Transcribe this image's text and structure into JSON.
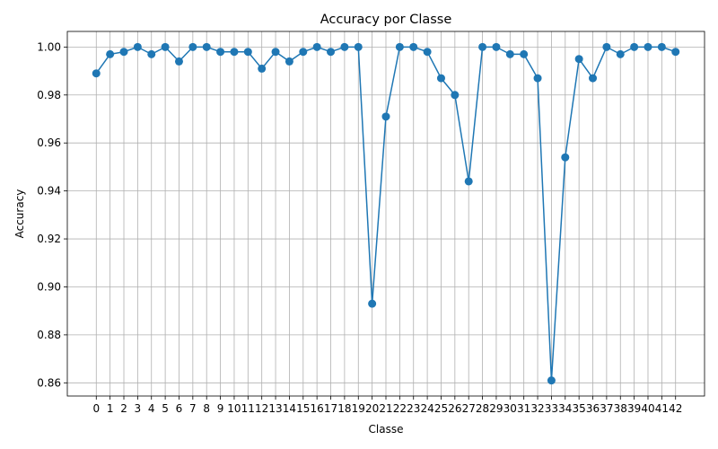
{
  "chart_data": {
    "type": "line",
    "title": "Accuracy por Classe",
    "xlabel": "Classe",
    "ylabel": "Accuracy",
    "categories": [
      "0",
      "1",
      "2",
      "3",
      "4",
      "5",
      "6",
      "7",
      "8",
      "9",
      "10",
      "11",
      "12",
      "13",
      "14",
      "15",
      "16",
      "17",
      "18",
      "19",
      "20",
      "21",
      "22",
      "23",
      "24",
      "25",
      "26",
      "27",
      "28",
      "29",
      "30",
      "31",
      "32",
      "33",
      "34",
      "35",
      "36",
      "37",
      "38",
      "39",
      "40",
      "41",
      "42"
    ],
    "values": [
      0.989,
      0.997,
      0.998,
      1.0,
      0.997,
      1.0,
      0.994,
      1.0,
      1.0,
      0.998,
      0.998,
      0.998,
      0.991,
      0.998,
      0.994,
      0.998,
      1.0,
      0.998,
      1.0,
      1.0,
      0.893,
      0.971,
      1.0,
      1.0,
      0.998,
      0.987,
      0.98,
      0.944,
      1.0,
      1.0,
      0.997,
      0.997,
      0.987,
      0.861,
      0.954,
      0.995,
      0.987,
      1.0,
      0.997,
      1.0,
      1.0,
      1.0,
      0.998
    ],
    "yticks": [
      "0.86",
      "0.88",
      "0.90",
      "0.92",
      "0.94",
      "0.96",
      "0.98",
      "1.00"
    ],
    "ylim": [
      0.8545,
      1.0065
    ],
    "grid": true,
    "marker": "circle",
    "colors": {
      "line": "#1f77b4",
      "grid": "#b0b0b0",
      "axes": "#000000"
    }
  }
}
